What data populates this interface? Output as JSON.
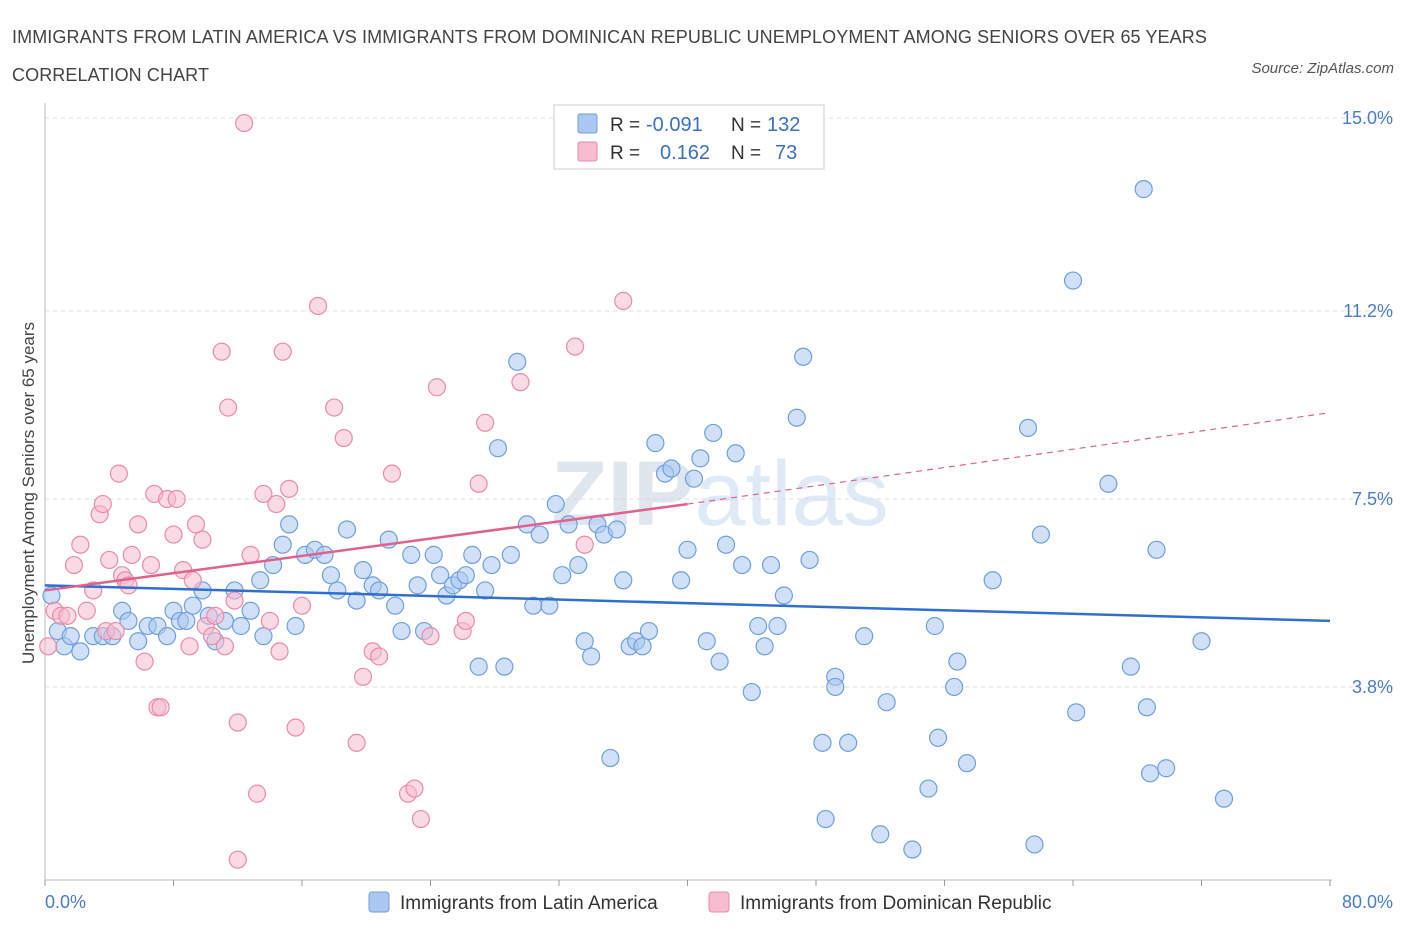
{
  "title": "IMMIGRANTS FROM LATIN AMERICA VS IMMIGRANTS FROM DOMINICAN REPUBLIC UNEMPLOYMENT AMONG SENIORS OVER 65 YEARS CORRELATION CHART",
  "source": "Source: ZipAtlas.com",
  "watermark": "ZIPatlas",
  "colors": {
    "blue_fill": "#aac8f0",
    "blue_stroke": "#6f9fe0",
    "blue_line": "#2f6fcf",
    "pink_fill": "#f6bccf",
    "pink_stroke": "#ec8aaa",
    "pink_line": "#e0608e",
    "accent_text": "#4a7cc7"
  },
  "legend": {
    "rows": [
      {
        "r_label": "R =",
        "r_value": "-0.091",
        "n_label": "N =",
        "n_value": "132"
      },
      {
        "r_label": "R =",
        "r_value": "0.162",
        "n_label": "N =",
        "n_value": "73"
      }
    ]
  },
  "chart_data": {
    "type": "scatter",
    "title": "IMMIGRANTS FROM LATIN AMERICA VS IMMIGRANTS FROM DOMINICAN REPUBLIC UNEMPLOYMENT AMONG SENIORS OVER 65 YEARS CORRELATION CHART",
    "xlabel": "",
    "ylabel": "Unemployment Among Seniors over 65 years",
    "xlim": [
      0,
      80
    ],
    "ylim": [
      0,
      15
    ],
    "x_tick_labels": [
      "0.0%",
      "80.0%"
    ],
    "y_ticks": [
      3.8,
      7.5,
      11.2,
      15.0
    ],
    "y_tick_labels": [
      "3.8%",
      "7.5%",
      "11.2%",
      "15.0%"
    ],
    "grid": true,
    "legend_position": "top-center",
    "series": [
      {
        "name": "Immigrants from Latin America",
        "color": "#aac8f0",
        "r": -0.091,
        "n": 132,
        "trend": {
          "x": [
            0,
            80
          ],
          "y": [
            5.8,
            5.1
          ],
          "style": "solid"
        },
        "points": [
          [
            0.4,
            5.6
          ],
          [
            0.8,
            4.9
          ],
          [
            1.2,
            4.6
          ],
          [
            1.6,
            4.8
          ],
          [
            2.2,
            4.5
          ],
          [
            3.0,
            4.8
          ],
          [
            3.6,
            4.8
          ],
          [
            4.2,
            4.8
          ],
          [
            4.8,
            5.3
          ],
          [
            5.2,
            5.1
          ],
          [
            5.8,
            4.7
          ],
          [
            6.4,
            5.0
          ],
          [
            7.0,
            5.0
          ],
          [
            7.6,
            4.8
          ],
          [
            8.0,
            5.3
          ],
          [
            8.4,
            5.1
          ],
          [
            8.8,
            5.1
          ],
          [
            9.2,
            5.4
          ],
          [
            9.8,
            5.7
          ],
          [
            10.2,
            5.2
          ],
          [
            10.6,
            4.7
          ],
          [
            11.2,
            5.1
          ],
          [
            11.8,
            5.7
          ],
          [
            12.2,
            5.0
          ],
          [
            12.8,
            5.3
          ],
          [
            13.4,
            5.9
          ],
          [
            13.6,
            4.8
          ],
          [
            14.2,
            6.2
          ],
          [
            14.8,
            6.6
          ],
          [
            15.2,
            7.0
          ],
          [
            15.6,
            5.0
          ],
          [
            16.2,
            6.4
          ],
          [
            16.8,
            6.5
          ],
          [
            17.4,
            6.4
          ],
          [
            17.8,
            6.0
          ],
          [
            18.2,
            5.7
          ],
          [
            18.8,
            6.9
          ],
          [
            19.4,
            5.5
          ],
          [
            19.8,
            6.1
          ],
          [
            20.4,
            5.8
          ],
          [
            20.8,
            5.7
          ],
          [
            21.4,
            6.7
          ],
          [
            21.8,
            5.4
          ],
          [
            22.2,
            4.9
          ],
          [
            22.8,
            6.4
          ],
          [
            23.2,
            5.8
          ],
          [
            23.6,
            4.9
          ],
          [
            24.2,
            6.4
          ],
          [
            24.6,
            6.0
          ],
          [
            25.0,
            5.6
          ],
          [
            25.4,
            5.8
          ],
          [
            25.8,
            5.9
          ],
          [
            26.2,
            6.0
          ],
          [
            26.6,
            6.4
          ],
          [
            27.0,
            4.2
          ],
          [
            27.4,
            5.7
          ],
          [
            27.8,
            6.2
          ],
          [
            28.2,
            8.5
          ],
          [
            28.6,
            4.2
          ],
          [
            29.0,
            6.4
          ],
          [
            29.4,
            10.2
          ],
          [
            30.0,
            7.0
          ],
          [
            30.4,
            5.4
          ],
          [
            30.8,
            6.8
          ],
          [
            31.4,
            5.4
          ],
          [
            31.8,
            7.4
          ],
          [
            32.2,
            6.0
          ],
          [
            32.6,
            7.0
          ],
          [
            33.2,
            6.2
          ],
          [
            33.6,
            4.7
          ],
          [
            34.0,
            4.4
          ],
          [
            34.4,
            7.0
          ],
          [
            34.8,
            6.8
          ],
          [
            35.2,
            2.4
          ],
          [
            35.6,
            6.9
          ],
          [
            36.0,
            5.9
          ],
          [
            36.4,
            4.6
          ],
          [
            36.8,
            4.7
          ],
          [
            37.2,
            4.6
          ],
          [
            37.6,
            4.9
          ],
          [
            38.0,
            8.6
          ],
          [
            38.6,
            8.0
          ],
          [
            39.0,
            8.1
          ],
          [
            39.6,
            5.9
          ],
          [
            40.0,
            6.5
          ],
          [
            40.4,
            7.9
          ],
          [
            40.8,
            8.3
          ],
          [
            41.2,
            4.7
          ],
          [
            41.6,
            8.8
          ],
          [
            42.0,
            4.3
          ],
          [
            42.4,
            6.6
          ],
          [
            43.0,
            8.4
          ],
          [
            43.4,
            6.2
          ],
          [
            44.0,
            3.7
          ],
          [
            44.4,
            5.0
          ],
          [
            44.8,
            4.6
          ],
          [
            45.2,
            6.2
          ],
          [
            45.6,
            5.0
          ],
          [
            46.0,
            5.6
          ],
          [
            46.8,
            9.1
          ],
          [
            47.2,
            10.3
          ],
          [
            47.6,
            6.3
          ],
          [
            48.6,
            1.2
          ],
          [
            48.4,
            2.7
          ],
          [
            49.2,
            4.0
          ],
          [
            49.2,
            3.8
          ],
          [
            50.0,
            2.7
          ],
          [
            51.0,
            4.8
          ],
          [
            52.0,
            0.9
          ],
          [
            52.4,
            3.5
          ],
          [
            54.0,
            0.6
          ],
          [
            55.0,
            1.8
          ],
          [
            55.4,
            5.0
          ],
          [
            55.6,
            2.8
          ],
          [
            56.6,
            3.8
          ],
          [
            56.8,
            4.3
          ],
          [
            57.4,
            2.3
          ],
          [
            59.0,
            5.9
          ],
          [
            61.2,
            8.9
          ],
          [
            61.6,
            0.7
          ],
          [
            62.0,
            6.8
          ],
          [
            64.0,
            11.8
          ],
          [
            64.2,
            3.3
          ],
          [
            66.2,
            7.8
          ],
          [
            67.6,
            4.2
          ],
          [
            68.4,
            13.6
          ],
          [
            68.6,
            3.4
          ],
          [
            68.8,
            2.1
          ],
          [
            69.2,
            6.5
          ],
          [
            69.8,
            2.2
          ],
          [
            72.0,
            4.7
          ],
          [
            73.4,
            1.6
          ]
        ]
      },
      {
        "name": "Immigrants from Dominican Republic",
        "color": "#f6bccf",
        "r": 0.162,
        "n": 73,
        "trend": {
          "x": [
            0,
            40
          ],
          "y": [
            5.7,
            7.4
          ],
          "style": "solid",
          "extended": {
            "x": [
              40,
              80
            ],
            "y": [
              7.4,
              9.2
            ],
            "style": "dashed"
          }
        },
        "points": [
          [
            0.2,
            4.6
          ],
          [
            0.6,
            5.3
          ],
          [
            1.0,
            5.2
          ],
          [
            1.4,
            5.2
          ],
          [
            1.8,
            6.2
          ],
          [
            2.2,
            6.6
          ],
          [
            2.6,
            5.3
          ],
          [
            3.0,
            5.7
          ],
          [
            3.4,
            7.2
          ],
          [
            3.6,
            7.4
          ],
          [
            3.8,
            4.9
          ],
          [
            4.0,
            6.3
          ],
          [
            4.4,
            4.9
          ],
          [
            4.6,
            8.0
          ],
          [
            4.8,
            6.0
          ],
          [
            5.0,
            5.9
          ],
          [
            5.2,
            5.8
          ],
          [
            5.4,
            6.4
          ],
          [
            5.8,
            7.0
          ],
          [
            6.2,
            4.3
          ],
          [
            6.6,
            6.2
          ],
          [
            6.8,
            7.6
          ],
          [
            7.0,
            3.4
          ],
          [
            7.2,
            3.4
          ],
          [
            7.6,
            7.5
          ],
          [
            8.0,
            6.8
          ],
          [
            8.2,
            7.5
          ],
          [
            8.6,
            6.1
          ],
          [
            9.0,
            4.6
          ],
          [
            9.2,
            5.9
          ],
          [
            9.4,
            7.0
          ],
          [
            9.8,
            6.7
          ],
          [
            10.0,
            5.0
          ],
          [
            10.4,
            4.8
          ],
          [
            10.6,
            5.2
          ],
          [
            11.0,
            10.4
          ],
          [
            11.2,
            4.6
          ],
          [
            11.4,
            9.3
          ],
          [
            11.8,
            5.5
          ],
          [
            12.0,
            3.1
          ],
          [
            12.0,
            0.4
          ],
          [
            12.4,
            14.9
          ],
          [
            12.8,
            6.4
          ],
          [
            13.2,
            1.7
          ],
          [
            13.6,
            7.6
          ],
          [
            14.0,
            5.1
          ],
          [
            14.4,
            7.4
          ],
          [
            14.6,
            4.5
          ],
          [
            14.8,
            10.4
          ],
          [
            15.2,
            7.7
          ],
          [
            15.6,
            3.0
          ],
          [
            16.0,
            5.4
          ],
          [
            17.0,
            11.3
          ],
          [
            18.0,
            9.3
          ],
          [
            18.6,
            8.7
          ],
          [
            19.4,
            2.7
          ],
          [
            19.8,
            4.0
          ],
          [
            20.4,
            4.5
          ],
          [
            20.8,
            4.4
          ],
          [
            21.6,
            8.0
          ],
          [
            22.6,
            1.7
          ],
          [
            23.0,
            1.8
          ],
          [
            23.4,
            1.2
          ],
          [
            24.0,
            4.8
          ],
          [
            24.4,
            9.7
          ],
          [
            26.0,
            4.9
          ],
          [
            26.2,
            5.1
          ],
          [
            27.0,
            7.8
          ],
          [
            27.4,
            9.0
          ],
          [
            29.6,
            9.8
          ],
          [
            33.0,
            10.5
          ],
          [
            33.6,
            6.6
          ],
          [
            36.0,
            11.4
          ]
        ]
      }
    ]
  },
  "bottom_legend": [
    {
      "label": "Immigrants from Latin America"
    },
    {
      "label": "Immigrants from Dominican Republic"
    }
  ]
}
